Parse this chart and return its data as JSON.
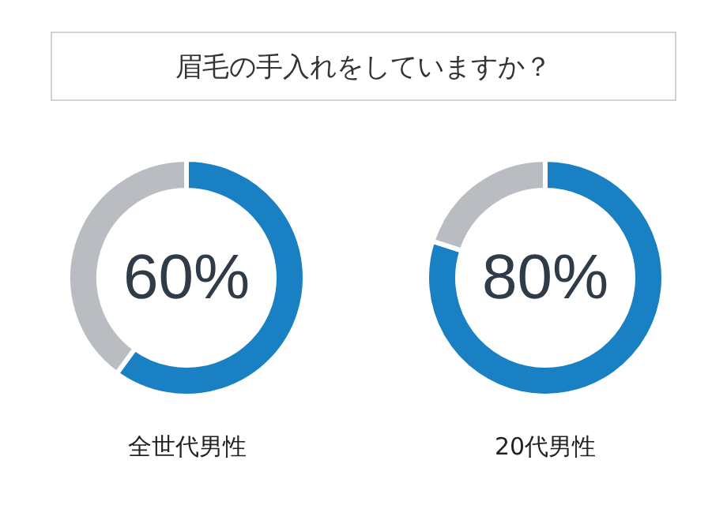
{
  "chart_data": [
    {
      "type": "other",
      "title": "眉毛の手入れをしていますか？"
    },
    {
      "type": "donut",
      "categories": [
        null,
        null
      ],
      "values": [
        60,
        40
      ],
      "colors": [
        "#1a80c4",
        "#b9bdc1"
      ],
      "annotations": [
        "60%"
      ],
      "xlabel": "全世代男性"
    },
    {
      "type": "donut",
      "categories": [
        null,
        null
      ],
      "values": [
        80,
        20
      ],
      "colors": [
        "#1a80c4",
        "#b9bdc1"
      ],
      "annotations": [
        "80%"
      ],
      "xlabel": "20代男性"
    }
  ]
}
